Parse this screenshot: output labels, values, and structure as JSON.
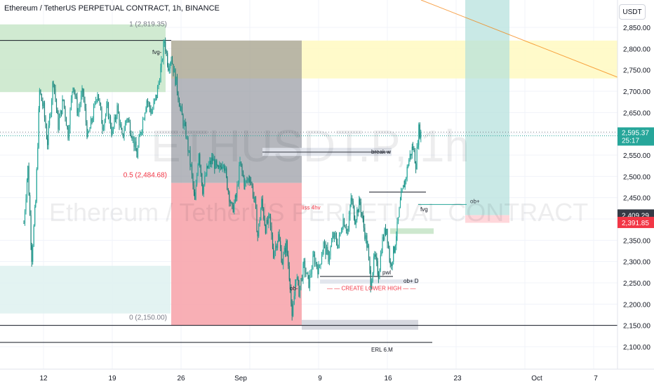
{
  "header": {
    "title": "Ethereum / TetherUS PERPETUAL CONTRACT, 1h, BINANCE",
    "currency_button": "USDT"
  },
  "watermark": {
    "symbol": "ETHUSDT.P, 1h",
    "name": "Ethereum / TetherUS PERPETUAL CONTRACT"
  },
  "colors": {
    "up": "#26a69a",
    "down": "#ef5350",
    "grid": "#f0f3fa",
    "last_price": "#26a69a",
    "red_label": "#f23645",
    "grey_label": "#363a45"
  },
  "chart_data": {
    "type": "candlestick",
    "symbol": "ETHUSDT.P",
    "timeframe": "1h",
    "exchange": "BINANCE",
    "y_axis": {
      "min": 2075,
      "max": 2900,
      "ticks": [
        "2,850.00",
        "2,800.00",
        "2,750.00",
        "2,700.00",
        "2,650.00",
        "2,600.00",
        "2,550.00",
        "2,500.00",
        "2,450.00",
        "2,400.00",
        "2,350.00",
        "2,300.00",
        "2,250.00",
        "2,200.00",
        "2,150.00",
        "2,100.00"
      ]
    },
    "x_axis": {
      "ticks": [
        "12",
        "19",
        "26",
        "Sep",
        "9",
        "16",
        "23",
        "Oct",
        "7"
      ]
    },
    "price_path_day_offset_from_Aug_12": [
      [
        -2,
        2390
      ],
      [
        -1.6,
        2520
      ],
      [
        -1.2,
        2310
      ],
      [
        -0.8,
        2440
      ],
      [
        -0.4,
        2700
      ],
      [
        0,
        2660
      ],
      [
        0.4,
        2580
      ],
      [
        1,
        2730
      ],
      [
        1.5,
        2620
      ],
      [
        2,
        2680
      ],
      [
        2.5,
        2600
      ],
      [
        3,
        2720
      ],
      [
        3.5,
        2650
      ],
      [
        4,
        2700
      ],
      [
        4.5,
        2590
      ],
      [
        5,
        2640
      ],
      [
        5.5,
        2700
      ],
      [
        6,
        2620
      ],
      [
        6.5,
        2660
      ],
      [
        7,
        2600
      ],
      [
        7.5,
        2660
      ],
      [
        8,
        2590
      ],
      [
        8.5,
        2640
      ],
      [
        9,
        2600
      ],
      [
        9.5,
        2550
      ],
      [
        10,
        2620
      ],
      [
        10.5,
        2680
      ],
      [
        11,
        2650
      ],
      [
        11.5,
        2690
      ],
      [
        12,
        2760
      ],
      [
        12.3,
        2819
      ],
      [
        12.7,
        2760
      ],
      [
        13,
        2780
      ],
      [
        13.5,
        2720
      ],
      [
        14,
        2650
      ],
      [
        14.5,
        2600
      ],
      [
        15,
        2520
      ],
      [
        15.4,
        2440
      ],
      [
        15.8,
        2560
      ],
      [
        16.2,
        2470
      ],
      [
        16.7,
        2520
      ],
      [
        17.2,
        2540
      ],
      [
        17.8,
        2510
      ],
      [
        18.3,
        2540
      ],
      [
        18.7,
        2480
      ],
      [
        19.2,
        2420
      ],
      [
        19.6,
        2450
      ],
      [
        20,
        2530
      ],
      [
        20.5,
        2480
      ],
      [
        21,
        2500
      ],
      [
        21.5,
        2440
      ],
      [
        21.8,
        2360
      ],
      [
        22.2,
        2440
      ],
      [
        22.6,
        2380
      ],
      [
        23,
        2400
      ],
      [
        23.4,
        2320
      ],
      [
        23.9,
        2360
      ],
      [
        24.3,
        2300
      ],
      [
        24.7,
        2340
      ],
      [
        25.1,
        2250
      ],
      [
        25.3,
        2160
      ],
      [
        25.7,
        2270
      ],
      [
        26,
        2230
      ],
      [
        26.5,
        2290
      ],
      [
        27,
        2250
      ],
      [
        27.5,
        2310
      ],
      [
        28,
        2280
      ],
      [
        28.5,
        2340
      ],
      [
        29,
        2310
      ],
      [
        29.5,
        2360
      ],
      [
        30,
        2340
      ],
      [
        30.5,
        2400
      ],
      [
        31,
        2370
      ],
      [
        31.3,
        2450
      ],
      [
        31.7,
        2400
      ],
      [
        32.2,
        2440
      ],
      [
        32.6,
        2380
      ],
      [
        33,
        2330
      ],
      [
        33.3,
        2250
      ],
      [
        33.7,
        2310
      ],
      [
        34.1,
        2270
      ],
      [
        34.5,
        2350
      ],
      [
        34.9,
        2380
      ],
      [
        35.3,
        2290
      ],
      [
        35.7,
        2330
      ],
      [
        36,
        2380
      ],
      [
        36.4,
        2450
      ],
      [
        36.8,
        2490
      ],
      [
        37.2,
        2540
      ],
      [
        37.6,
        2570
      ],
      [
        37.9,
        2530
      ],
      [
        38.2,
        2610
      ],
      [
        38.5,
        2595
      ]
    ],
    "levels": [
      {
        "label": "1 (2,819.35)",
        "price": 2819.35
      },
      {
        "label": "0.5 (2,484.68)",
        "price": 2484.68
      },
      {
        "label": "0 (2,150.00)",
        "price": 2150.0
      }
    ],
    "annotations": [
      "fvg-",
      "break w",
      "ob+",
      "fvg",
      "liss 4hv",
      "ob-",
      "pwl",
      "ob+ D",
      "CREATE LOWER HIGH",
      "ERL 6.M"
    ],
    "price_labels": {
      "last_price": "2,595.37",
      "countdown": "25:17",
      "grey_level": "2,409.29",
      "red_level": "2,391.85"
    }
  }
}
